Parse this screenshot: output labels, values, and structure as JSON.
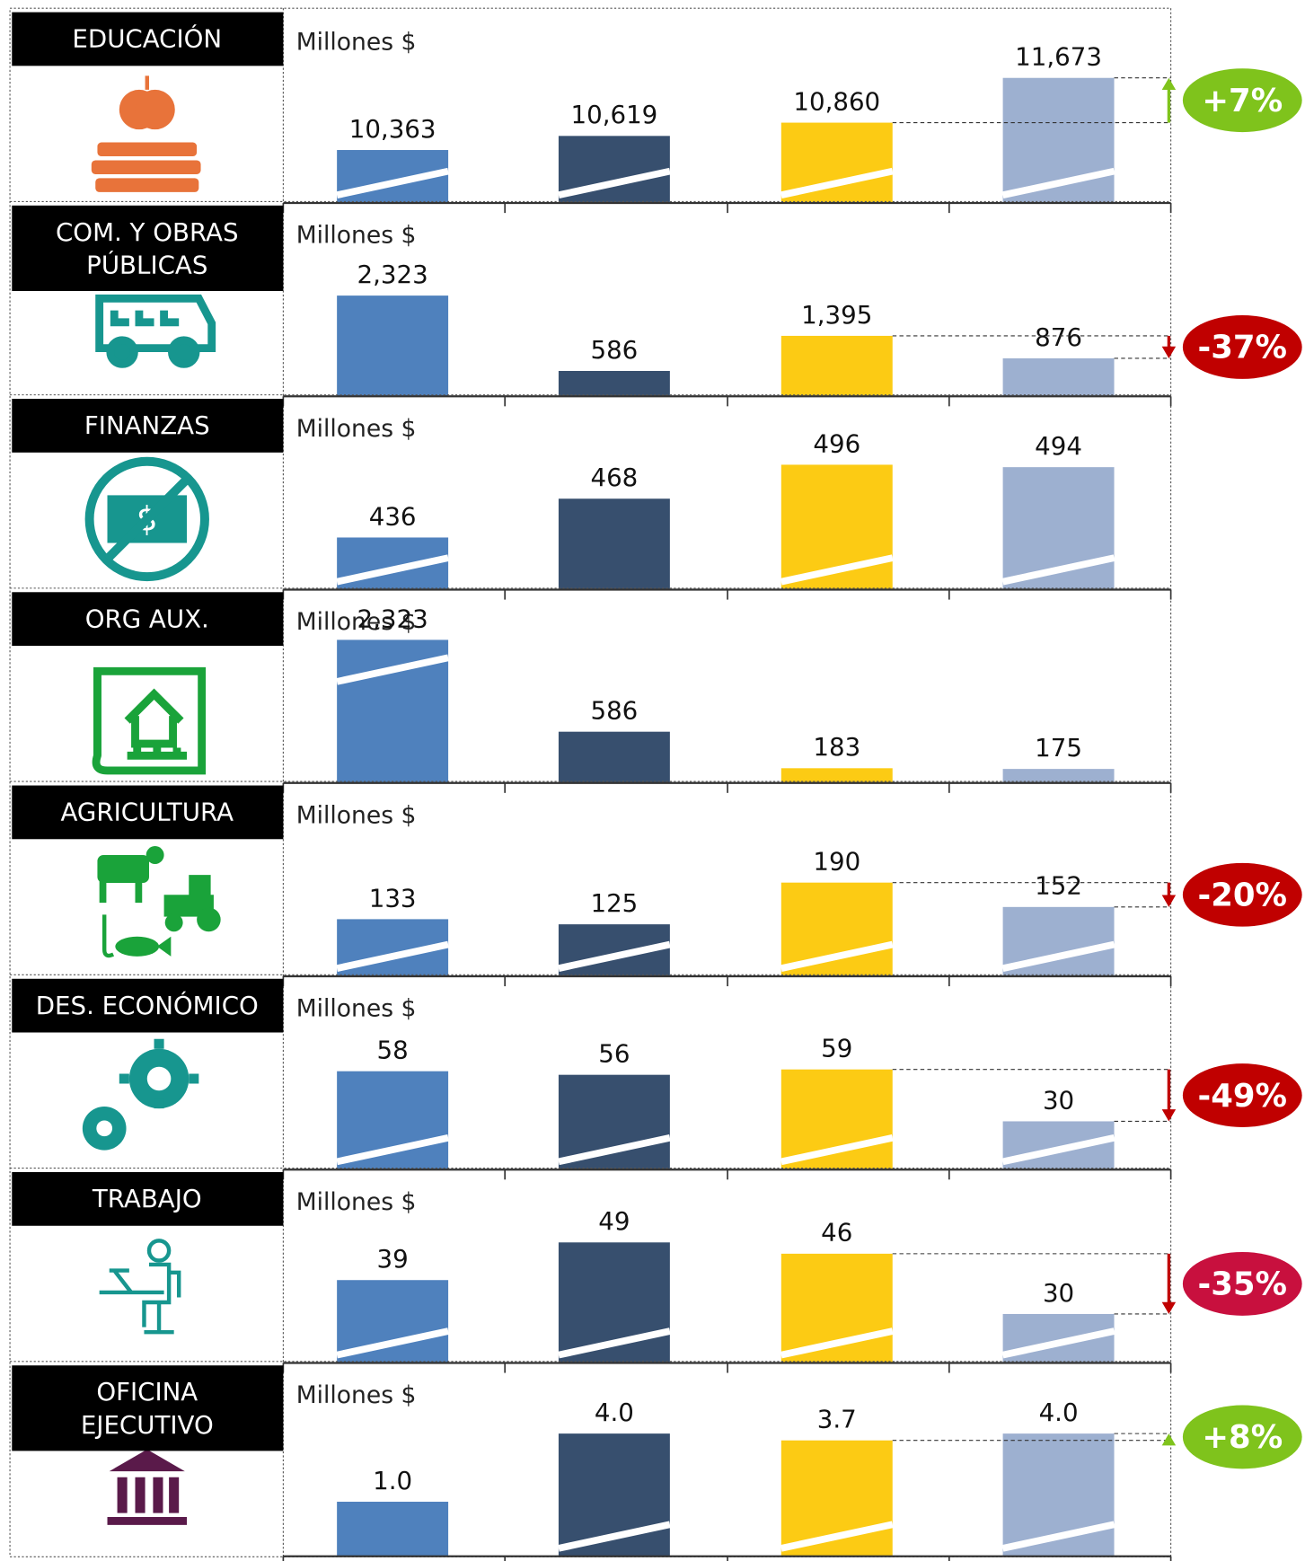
{
  "colors": [
    "#4f81bd",
    "#374f6e",
    "#fccb14",
    "#9db0d0"
  ],
  "chart_data": [
    {
      "type": "bar",
      "label": [
        "EDUCACIÓN"
      ],
      "unit": "Millones $",
      "values": [
        10363,
        10619,
        10860,
        11673
      ],
      "value_labels": [
        "10,363",
        "10,619",
        "10,860",
        "11,673"
      ],
      "ylim": [
        9400,
        12000
      ],
      "breaks": [
        true,
        true,
        true,
        true
      ],
      "change": {
        "value": 7,
        "label": "+7%",
        "color": "#7fc31c"
      }
    },
    {
      "type": "bar",
      "label": [
        "COM. Y OBRAS",
        "PÚBLICAS"
      ],
      "unit": "Millones $",
      "values": [
        2323,
        586,
        1395,
        876
      ],
      "value_labels": [
        "2,323",
        "586",
        "1,395",
        "876"
      ],
      "ylim": [
        0,
        3300
      ],
      "breaks": [
        false,
        false,
        false,
        false
      ],
      "change": {
        "value": -37,
        "label": "-37%",
        "color": "#c00000"
      }
    },
    {
      "type": "bar",
      "label": [
        "FINANZAS"
      ],
      "unit": "Millones $",
      "values": [
        436,
        468,
        496,
        494
      ],
      "ylim": [
        393,
        511
      ],
      "breaks": [
        true,
        false,
        true,
        true
      ]
    },
    {
      "type": "bar",
      "label": [
        "ORG AUX."
      ],
      "unit": "Millones $",
      "values": [
        2323,
        586,
        183,
        175
      ],
      "value_labels": [
        "2,323",
        "586",
        "183",
        "175"
      ],
      "ylim": [
        20,
        1600
      ],
      "breaks": [
        true,
        false,
        false,
        false
      ]
    },
    {
      "type": "bar",
      "label": [
        "AGRICULTURA"
      ],
      "unit": "Millones $",
      "values": [
        133,
        125,
        190,
        152
      ],
      "ylim": [
        44,
        267
      ],
      "breaks": [
        true,
        true,
        true,
        true
      ],
      "change": {
        "value": -20,
        "label": "-20%",
        "color": "#c00000"
      }
    },
    {
      "type": "bar",
      "label": [
        "DES. ECONÓMICO"
      ],
      "unit": "Millones $",
      "values": [
        58,
        56,
        59,
        30
      ],
      "ylim": [
        3,
        83
      ],
      "breaks": [
        true,
        true,
        true,
        true
      ],
      "change": {
        "value": -49,
        "label": "-49%",
        "color": "#c00000"
      }
    },
    {
      "type": "bar",
      "label": [
        "TRABAJO"
      ],
      "unit": "Millones $",
      "values": [
        39,
        49,
        46,
        30
      ],
      "ylim": [
        17,
        55
      ],
      "breaks": [
        true,
        true,
        true,
        true
      ],
      "change": {
        "value": -35,
        "label": "-35%",
        "color": "#c8103e"
      }
    },
    {
      "type": "bar",
      "label": [
        "OFICINA",
        "EJECUTIVO"
      ],
      "unit": "Millones $",
      "values": [
        1.0,
        4.0,
        3.7,
        4.0
      ],
      "value_labels": [
        "1.0",
        "4.0",
        "3.7",
        "4.0"
      ],
      "ylim": [
        -1.4,
        4.9
      ],
      "breaks": [
        false,
        true,
        true,
        true
      ],
      "change": {
        "value": 8,
        "label": "+8%",
        "color": "#7fc31c"
      }
    }
  ]
}
